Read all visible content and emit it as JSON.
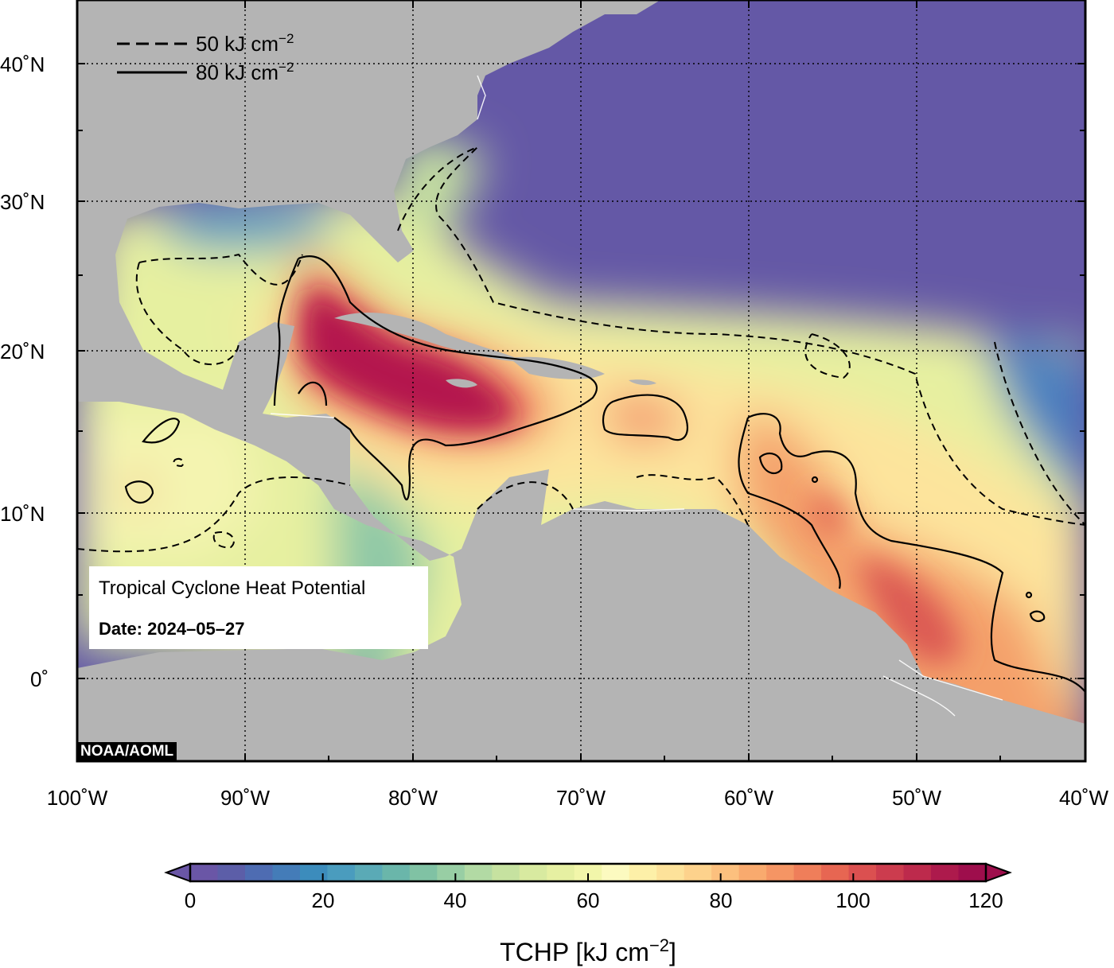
{
  "map": {
    "credit": "NOAA/AOML",
    "info": {
      "title": "Tropical Cyclone Heat Potential",
      "date_text": "Date: 2024–05–27"
    },
    "contour_legend": [
      {
        "label": "50 kJ cm",
        "sup": "−2",
        "style": "dashed"
      },
      {
        "label": "80 kJ cm",
        "sup": "−2",
        "style": "solid"
      }
    ],
    "lon_labels": [
      "100˚W",
      "90˚W",
      "80˚W",
      "70˚W",
      "60˚W",
      "50˚W",
      "40˚W"
    ],
    "lat_labels": [
      "40˚N",
      "30˚N",
      "20˚N",
      "10˚N",
      "0˚"
    ],
    "extent": {
      "lon": [
        -100,
        -40
      ],
      "lat": [
        -5,
        45
      ]
    },
    "colors": {
      "land": "#b4b4b4",
      "ocean_low": "#6458a6",
      "ocean_high": "#a5104c"
    }
  },
  "colorbar": {
    "label": "TCHP [kJ cm",
    "label_sup": "−2",
    "label_end": "]",
    "tick_labels": [
      "0",
      "20",
      "40",
      "60",
      "80",
      "100",
      "120"
    ],
    "range": [
      0,
      120
    ],
    "colors": [
      "#6a56a6",
      "#5c5ea8",
      "#4e6cb2",
      "#447cb8",
      "#3c8cbc",
      "#4a9cbe",
      "#5aaab6",
      "#6ab6aa",
      "#80c2a4",
      "#98cea4",
      "#b2daa4",
      "#c6e2a0",
      "#d8eaa0",
      "#e6f0a2",
      "#f2f6aa",
      "#fcfac0",
      "#fdf0a8",
      "#fde29a",
      "#fdd28c",
      "#fcc07e",
      "#f9aa6e",
      "#f59564",
      "#ef7e5a",
      "#e76652",
      "#db5050",
      "#cc3c4e",
      "#bd2a4c",
      "#ad1a4c",
      "#9e0e4c"
    ]
  }
}
